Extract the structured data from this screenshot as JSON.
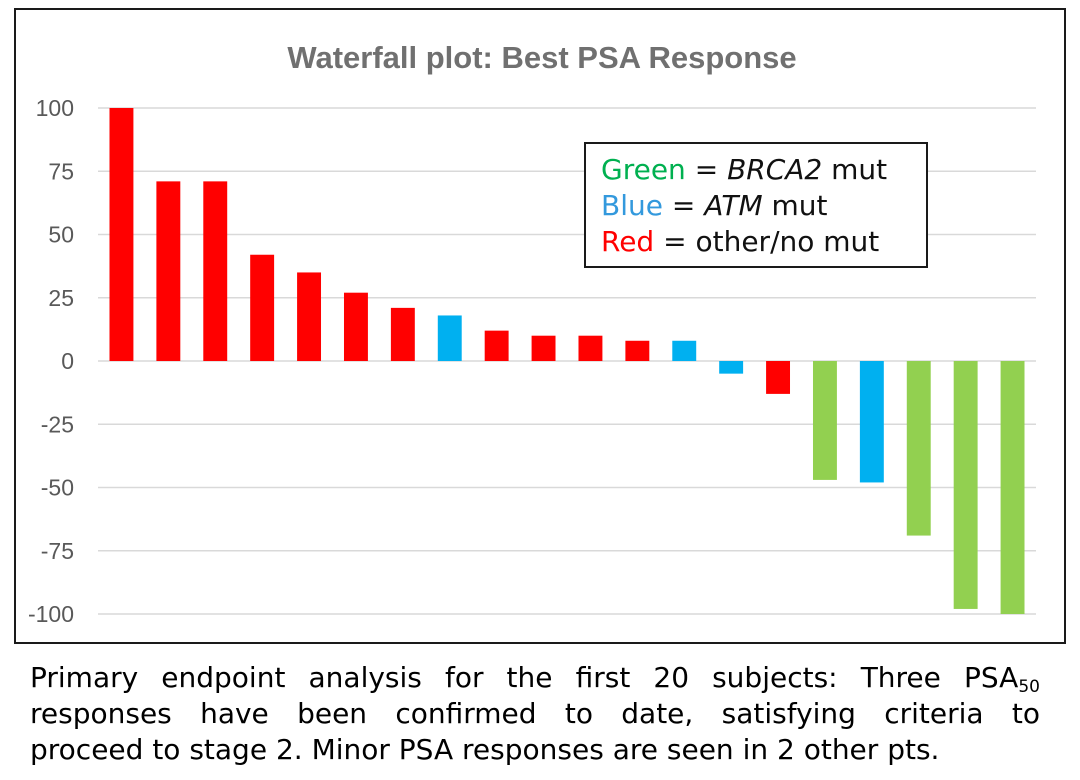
{
  "chart_data": {
    "type": "bar",
    "title": "Waterfall plot:  Best PSA Response",
    "xlabel": "",
    "ylabel": "",
    "ylim": [
      -100,
      100
    ],
    "yticks": [
      100,
      75,
      50,
      25,
      0,
      -25,
      -50,
      -75,
      -100
    ],
    "ytick_labels": [
      "100",
      "75",
      "50",
      "25",
      "0",
      "-25",
      "-50",
      "-75",
      "-100"
    ],
    "grid": true,
    "legend_placement": "top-right",
    "values": [
      100,
      71,
      71,
      42,
      35,
      27,
      21,
      18,
      12,
      10,
      10,
      8,
      8,
      -5,
      -13,
      -47,
      -48,
      -69,
      -98,
      -100
    ],
    "bar_groups": [
      "red",
      "red",
      "red",
      "red",
      "red",
      "red",
      "red",
      "blue",
      "red",
      "red",
      "red",
      "red",
      "blue",
      "blue",
      "red",
      "green",
      "blue",
      "green",
      "green",
      "green"
    ],
    "group_colors": {
      "green": "#92d050",
      "blue": "#00b0f0",
      "red": "#ff0000"
    },
    "legend": [
      {
        "group": "green",
        "color_word": "Green",
        "eq": " = ",
        "gene": "BRCA2",
        "suffix": " mut",
        "text_color": "#00b050"
      },
      {
        "group": "blue",
        "color_word": "Blue",
        "eq": " = ",
        "gene": "ATM",
        "suffix": " mut",
        "text_color": "#3399dd"
      },
      {
        "group": "red",
        "color_word": "Red",
        "eq": " = ",
        "gene": "",
        "suffix": "other/no mut",
        "text_color": "#ff0000"
      }
    ]
  },
  "caption": {
    "line1_words": [
      "Primary",
      "endpoint",
      "analysis",
      "for",
      "the",
      "first",
      "20",
      "subjects:",
      "Three"
    ],
    "line1_tail": "PSA",
    "line1_sub": "50",
    "line2": "responses have been confirmed to date, satisfying criteria to",
    "line3": "proceed to stage 2. Minor PSA responses are seen in 2 other pts."
  }
}
